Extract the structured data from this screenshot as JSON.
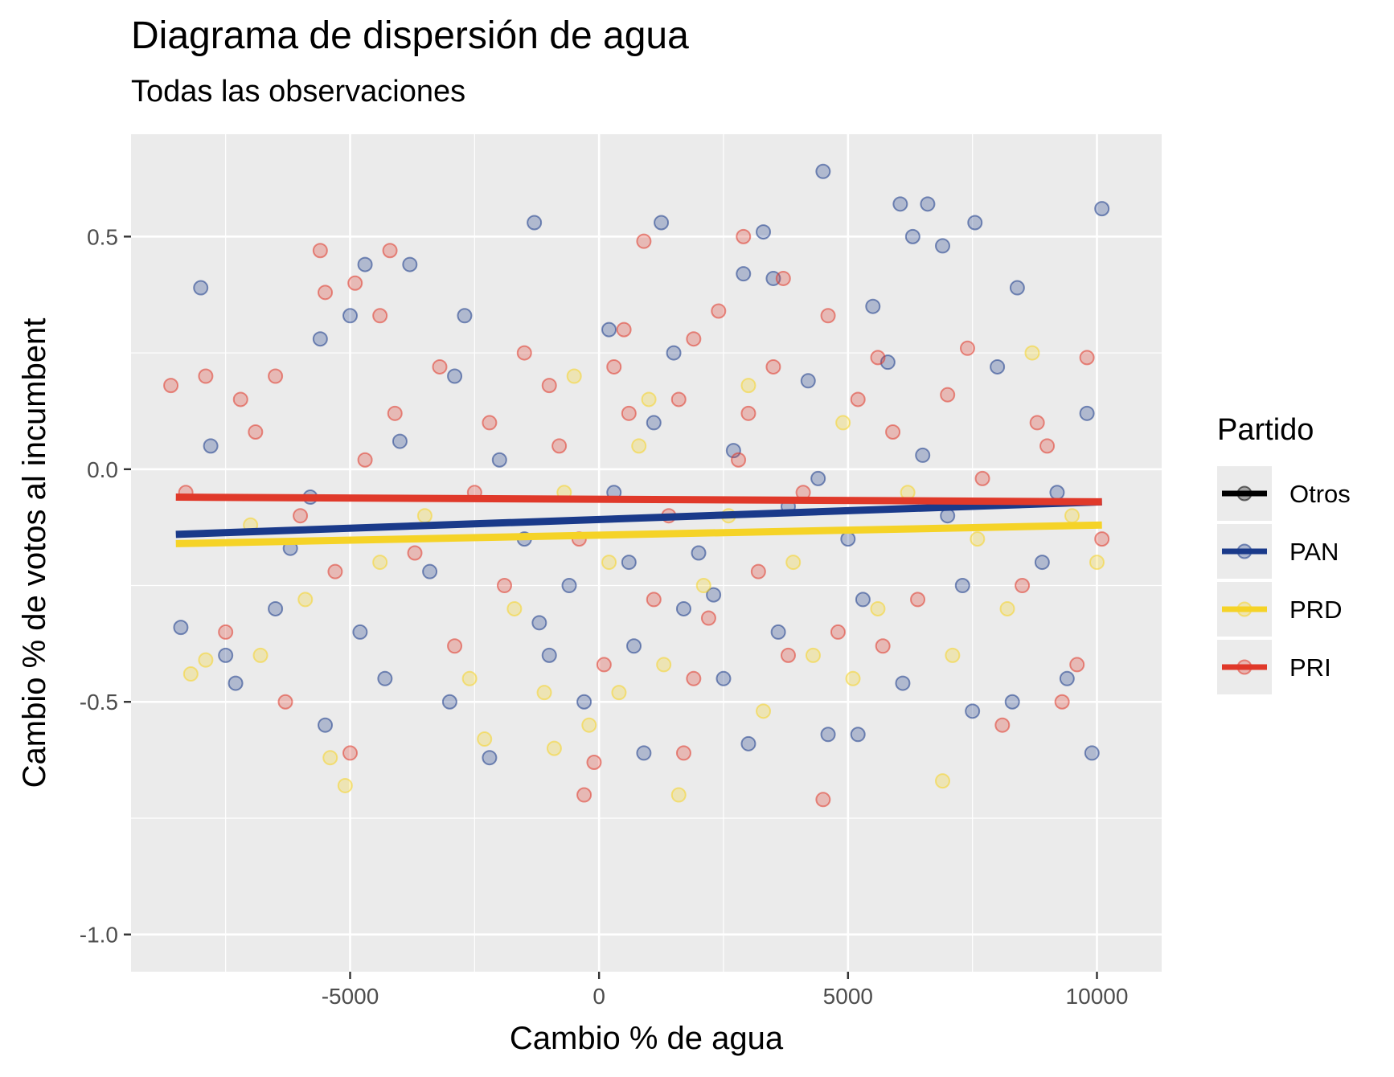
{
  "chart_data": {
    "type": "scatter",
    "title": "Diagrama de dispersión de agua",
    "subtitle": "Todas las observaciones",
    "xlabel": "Cambio % de agua",
    "ylabel": "Cambio % de votos al incumbent",
    "xlim": [
      -9400,
      11300
    ],
    "ylim": [
      -1.08,
      0.72
    ],
    "x_ticks": [
      -5000,
      0,
      5000,
      10000
    ],
    "x_tick_labels": [
      "-5000",
      "0",
      "5000",
      "10000"
    ],
    "y_ticks": [
      0.5,
      0.0,
      -0.5,
      -1.0
    ],
    "y_tick_labels": [
      "0.5",
      "0.0",
      "-0.5",
      "-1.0"
    ],
    "grid": true,
    "legend_position": "right",
    "legend": {
      "title": "Partido",
      "entries": [
        {
          "name": "Otros",
          "color": "#000000"
        },
        {
          "name": "PAN",
          "color": "#1a3a8a"
        },
        {
          "name": "PRD",
          "color": "#f5d327"
        },
        {
          "name": "PRI",
          "color": "#e0392a"
        }
      ]
    },
    "series": [
      {
        "name": "PAN",
        "color": "#1a3a8a",
        "fit_line": {
          "x": [
            -8500,
            10100
          ],
          "y": [
            -0.14,
            -0.07
          ]
        },
        "points": [
          [
            -8000,
            0.39
          ],
          [
            -1300,
            0.53
          ],
          [
            1250,
            0.53
          ],
          [
            3300,
            0.51
          ],
          [
            4500,
            0.64
          ],
          [
            6050,
            0.57
          ],
          [
            6600,
            0.57
          ],
          [
            10100,
            0.56
          ],
          [
            7550,
            0.53
          ],
          [
            6300,
            0.5
          ],
          [
            -4700,
            0.44
          ],
          [
            -3800,
            0.44
          ],
          [
            -5000,
            0.33
          ],
          [
            -5600,
            0.28
          ],
          [
            -2700,
            0.33
          ],
          [
            2900,
            0.42
          ],
          [
            3500,
            0.41
          ],
          [
            5500,
            0.35
          ],
          [
            8400,
            0.39
          ],
          [
            6900,
            0.48
          ],
          [
            -2200,
            -0.62
          ],
          [
            900,
            -0.61
          ],
          [
            3000,
            -0.59
          ],
          [
            9900,
            -0.61
          ],
          [
            5200,
            -0.57
          ],
          [
            -4300,
            -0.45
          ],
          [
            -7500,
            -0.4
          ],
          [
            -5500,
            -0.55
          ],
          [
            8300,
            -0.5
          ],
          [
            4600,
            -0.57
          ],
          [
            -1000,
            -0.4
          ],
          [
            1700,
            -0.3
          ],
          [
            2500,
            -0.45
          ],
          [
            -300,
            -0.5
          ],
          [
            600,
            -0.2
          ],
          [
            -6500,
            -0.3
          ],
          [
            -3000,
            -0.5
          ],
          [
            6100,
            -0.46
          ],
          [
            7500,
            -0.52
          ],
          [
            9400,
            -0.45
          ],
          [
            -8400,
            -0.34
          ],
          [
            -7300,
            -0.46
          ],
          [
            -4800,
            -0.35
          ],
          [
            -2900,
            0.2
          ],
          [
            200,
            0.3
          ],
          [
            1500,
            0.25
          ],
          [
            4200,
            0.19
          ],
          [
            5800,
            0.23
          ],
          [
            8000,
            0.22
          ],
          [
            9800,
            0.12
          ],
          [
            -600,
            -0.25
          ],
          [
            -1500,
            -0.15
          ],
          [
            300,
            -0.05
          ],
          [
            2000,
            -0.18
          ],
          [
            3800,
            -0.08
          ],
          [
            5000,
            -0.15
          ],
          [
            -3400,
            -0.22
          ],
          [
            -5800,
            -0.06
          ],
          [
            7000,
            -0.1
          ],
          [
            8900,
            -0.2
          ],
          [
            -7800,
            0.05
          ],
          [
            -6200,
            -0.17
          ],
          [
            -2000,
            0.02
          ],
          [
            1100,
            0.1
          ],
          [
            2700,
            0.04
          ],
          [
            4400,
            -0.02
          ],
          [
            6500,
            0.03
          ],
          [
            9200,
            -0.05
          ],
          [
            -4000,
            0.06
          ],
          [
            -1200,
            -0.33
          ],
          [
            700,
            -0.38
          ],
          [
            2300,
            -0.27
          ],
          [
            3600,
            -0.35
          ],
          [
            5300,
            -0.28
          ],
          [
            7300,
            -0.25
          ]
        ]
      },
      {
        "name": "PRD",
        "color": "#f5d327",
        "fit_line": {
          "x": [
            -8500,
            10100
          ],
          "y": [
            -0.16,
            -0.12
          ]
        },
        "points": [
          [
            -5400,
            -0.62
          ],
          [
            -5100,
            -0.68
          ],
          [
            -8200,
            -0.44
          ],
          [
            -7900,
            -0.41
          ],
          [
            -2300,
            -0.58
          ],
          [
            1600,
            -0.7
          ],
          [
            6900,
            -0.67
          ],
          [
            -200,
            -0.55
          ],
          [
            -900,
            -0.6
          ],
          [
            400,
            -0.48
          ],
          [
            8700,
            0.25
          ],
          [
            -500,
            0.2
          ],
          [
            1000,
            0.15
          ],
          [
            3000,
            0.18
          ],
          [
            4900,
            0.1
          ],
          [
            -3500,
            -0.1
          ],
          [
            -1700,
            -0.3
          ],
          [
            200,
            -0.2
          ],
          [
            2100,
            -0.25
          ],
          [
            3900,
            -0.2
          ],
          [
            5600,
            -0.3
          ],
          [
            7600,
            -0.15
          ],
          [
            9500,
            -0.1
          ],
          [
            -6800,
            -0.4
          ],
          [
            -4400,
            -0.2
          ],
          [
            -2600,
            -0.45
          ],
          [
            -700,
            -0.05
          ],
          [
            800,
            0.05
          ],
          [
            2600,
            -0.1
          ],
          [
            4300,
            -0.4
          ],
          [
            6200,
            -0.05
          ],
          [
            8200,
            -0.3
          ],
          [
            10000,
            -0.2
          ],
          [
            -7000,
            -0.12
          ],
          [
            -5900,
            -0.28
          ],
          [
            -1100,
            -0.48
          ],
          [
            1300,
            -0.42
          ],
          [
            3300,
            -0.52
          ],
          [
            5100,
            -0.45
          ],
          [
            7100,
            -0.4
          ]
        ]
      },
      {
        "name": "PRI",
        "color": "#e0392a",
        "fit_line": {
          "x": [
            -8500,
            10100
          ],
          "y": [
            -0.06,
            -0.07
          ]
        },
        "points": [
          [
            -5600,
            0.47
          ],
          [
            -4200,
            0.47
          ],
          [
            -4900,
            0.4
          ],
          [
            900,
            0.49
          ],
          [
            2900,
            0.5
          ],
          [
            3700,
            0.41
          ],
          [
            2400,
            0.34
          ],
          [
            -4400,
            0.33
          ],
          [
            -5500,
            0.38
          ],
          [
            4600,
            0.33
          ],
          [
            -300,
            -0.7
          ],
          [
            4500,
            -0.71
          ],
          [
            -100,
            -0.63
          ],
          [
            1700,
            -0.61
          ],
          [
            -6300,
            -0.5
          ],
          [
            -5000,
            -0.61
          ],
          [
            9300,
            -0.5
          ],
          [
            8100,
            -0.55
          ],
          [
            -7900,
            0.2
          ],
          [
            -6500,
            0.2
          ],
          [
            -3200,
            0.22
          ],
          [
            -1500,
            0.25
          ],
          [
            500,
            0.3
          ],
          [
            1900,
            0.28
          ],
          [
            3500,
            0.22
          ],
          [
            5600,
            0.24
          ],
          [
            7400,
            0.26
          ],
          [
            9800,
            0.24
          ],
          [
            -8600,
            0.18
          ],
          [
            -7200,
            0.15
          ],
          [
            -2200,
            0.1
          ],
          [
            -800,
            0.05
          ],
          [
            600,
            0.12
          ],
          [
            1400,
            -0.1
          ],
          [
            2800,
            0.02
          ],
          [
            4100,
            -0.05
          ],
          [
            5900,
            0.08
          ],
          [
            7700,
            -0.02
          ],
          [
            9000,
            0.05
          ],
          [
            -6000,
            -0.1
          ],
          [
            -4700,
            0.02
          ],
          [
            -3700,
            -0.18
          ],
          [
            -1900,
            -0.25
          ],
          [
            -400,
            -0.15
          ],
          [
            1100,
            -0.28
          ],
          [
            2200,
            -0.32
          ],
          [
            3200,
            -0.22
          ],
          [
            4800,
            -0.35
          ],
          [
            6400,
            -0.28
          ],
          [
            8500,
            -0.25
          ],
          [
            10100,
            -0.15
          ],
          [
            -8300,
            -0.05
          ],
          [
            -7500,
            -0.35
          ],
          [
            -5300,
            -0.22
          ],
          [
            -2900,
            -0.38
          ],
          [
            -1000,
            0.18
          ],
          [
            300,
            0.22
          ],
          [
            1600,
            0.15
          ],
          [
            3000,
            0.12
          ],
          [
            5200,
            0.15
          ],
          [
            7000,
            0.16
          ],
          [
            8800,
            0.1
          ],
          [
            -6900,
            0.08
          ],
          [
            -4100,
            0.12
          ],
          [
            -2500,
            -0.05
          ],
          [
            100,
            -0.42
          ],
          [
            1900,
            -0.45
          ],
          [
            3800,
            -0.4
          ],
          [
            5700,
            -0.38
          ],
          [
            9600,
            -0.42
          ]
        ]
      }
    ]
  }
}
